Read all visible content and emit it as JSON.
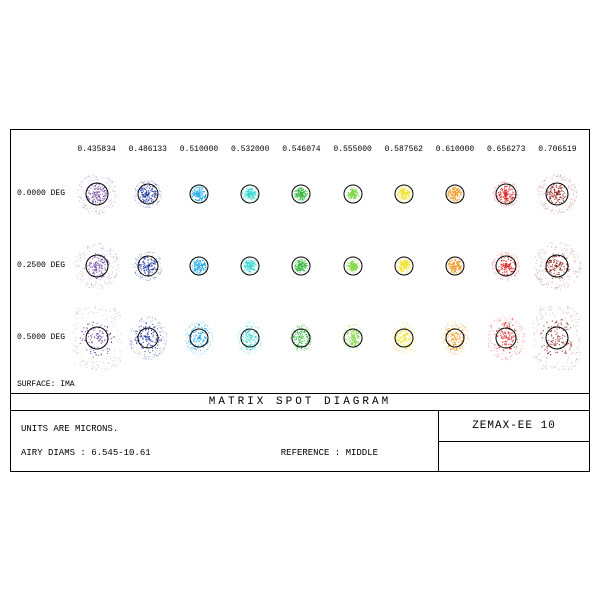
{
  "title": "MATRIX SPOT DIAGRAM",
  "surface_label": "SURFACE: IMA",
  "units_label": "UNITS ARE MICRONS.",
  "airy_label": "AIRY DIAMS : 6.545-10.61",
  "reference_label": "REFERENCE  : MIDDLE",
  "software_label": "ZEMAX-EE 10",
  "wavelength_headers": [
    "0.435834",
    "0.486133",
    "0.510000",
    "0.532000",
    "0.546074",
    "0.555000",
    "0.587562",
    "0.610000",
    "0.656273",
    "0.706519"
  ],
  "row_labels": [
    "0.0000 DEG",
    "0.2500 DEG",
    "0.5000 DEG"
  ],
  "columns": [
    {
      "hex": "#6b3fa0",
      "core_r": 11,
      "halo_r": 20,
      "airy_r": 11,
      "row_scale": [
        1.0,
        1.15,
        1.6
      ],
      "ellipse": [
        1.0,
        1.0,
        1.15
      ]
    },
    {
      "hex": "#132f9e",
      "core_r": 10,
      "halo_r": 14,
      "airy_r": 10,
      "row_scale": [
        1.0,
        1.05,
        1.35
      ],
      "ellipse": [
        1.0,
        1.0,
        1.15
      ]
    },
    {
      "hex": "#1aa7e8",
      "core_r": 7,
      "halo_r": 9,
      "airy_r": 9,
      "row_scale": [
        1.0,
        1.0,
        1.55
      ],
      "ellipse": [
        1.0,
        1.0,
        1.25
      ]
    },
    {
      "hex": "#2fd6d0",
      "core_r": 6,
      "halo_r": 8,
      "airy_r": 9,
      "row_scale": [
        1.0,
        1.0,
        1.55
      ],
      "ellipse": [
        1.0,
        1.0,
        1.3
      ]
    },
    {
      "hex": "#2fb53a",
      "core_r": 6,
      "halo_r": 7,
      "airy_r": 9,
      "row_scale": [
        1.0,
        1.0,
        1.5
      ],
      "ellipse": [
        1.0,
        1.0,
        1.3
      ]
    },
    {
      "hex": "#7ed640",
      "core_r": 5,
      "halo_r": 7,
      "airy_r": 9,
      "row_scale": [
        1.0,
        1.0,
        1.5
      ],
      "ellipse": [
        1.0,
        1.0,
        1.3
      ]
    },
    {
      "hex": "#f2df20",
      "core_r": 6,
      "halo_r": 8,
      "airy_r": 9,
      "row_scale": [
        1.0,
        1.0,
        1.5
      ],
      "ellipse": [
        1.0,
        1.0,
        1.3
      ]
    },
    {
      "hex": "#f2941a",
      "core_r": 7,
      "halo_r": 9,
      "airy_r": 9,
      "row_scale": [
        1.0,
        1.0,
        1.5
      ],
      "ellipse": [
        1.0,
        1.0,
        1.25
      ]
    },
    {
      "hex": "#d6201a",
      "core_r": 9,
      "halo_r": 13,
      "airy_r": 10,
      "row_scale": [
        1.0,
        1.1,
        1.45
      ],
      "ellipse": [
        1.0,
        1.0,
        1.2
      ]
    },
    {
      "hex": "#8a1a12",
      "core_r": 11,
      "halo_r": 20,
      "airy_r": 11,
      "row_scale": [
        1.0,
        1.2,
        1.55
      ],
      "ellipse": [
        1.0,
        1.0,
        1.15
      ]
    }
  ],
  "airy_circle_color": "#000000",
  "background_color": "#ffffff",
  "font_family": "Courier New, monospace",
  "frame_border_color": "#000000"
}
